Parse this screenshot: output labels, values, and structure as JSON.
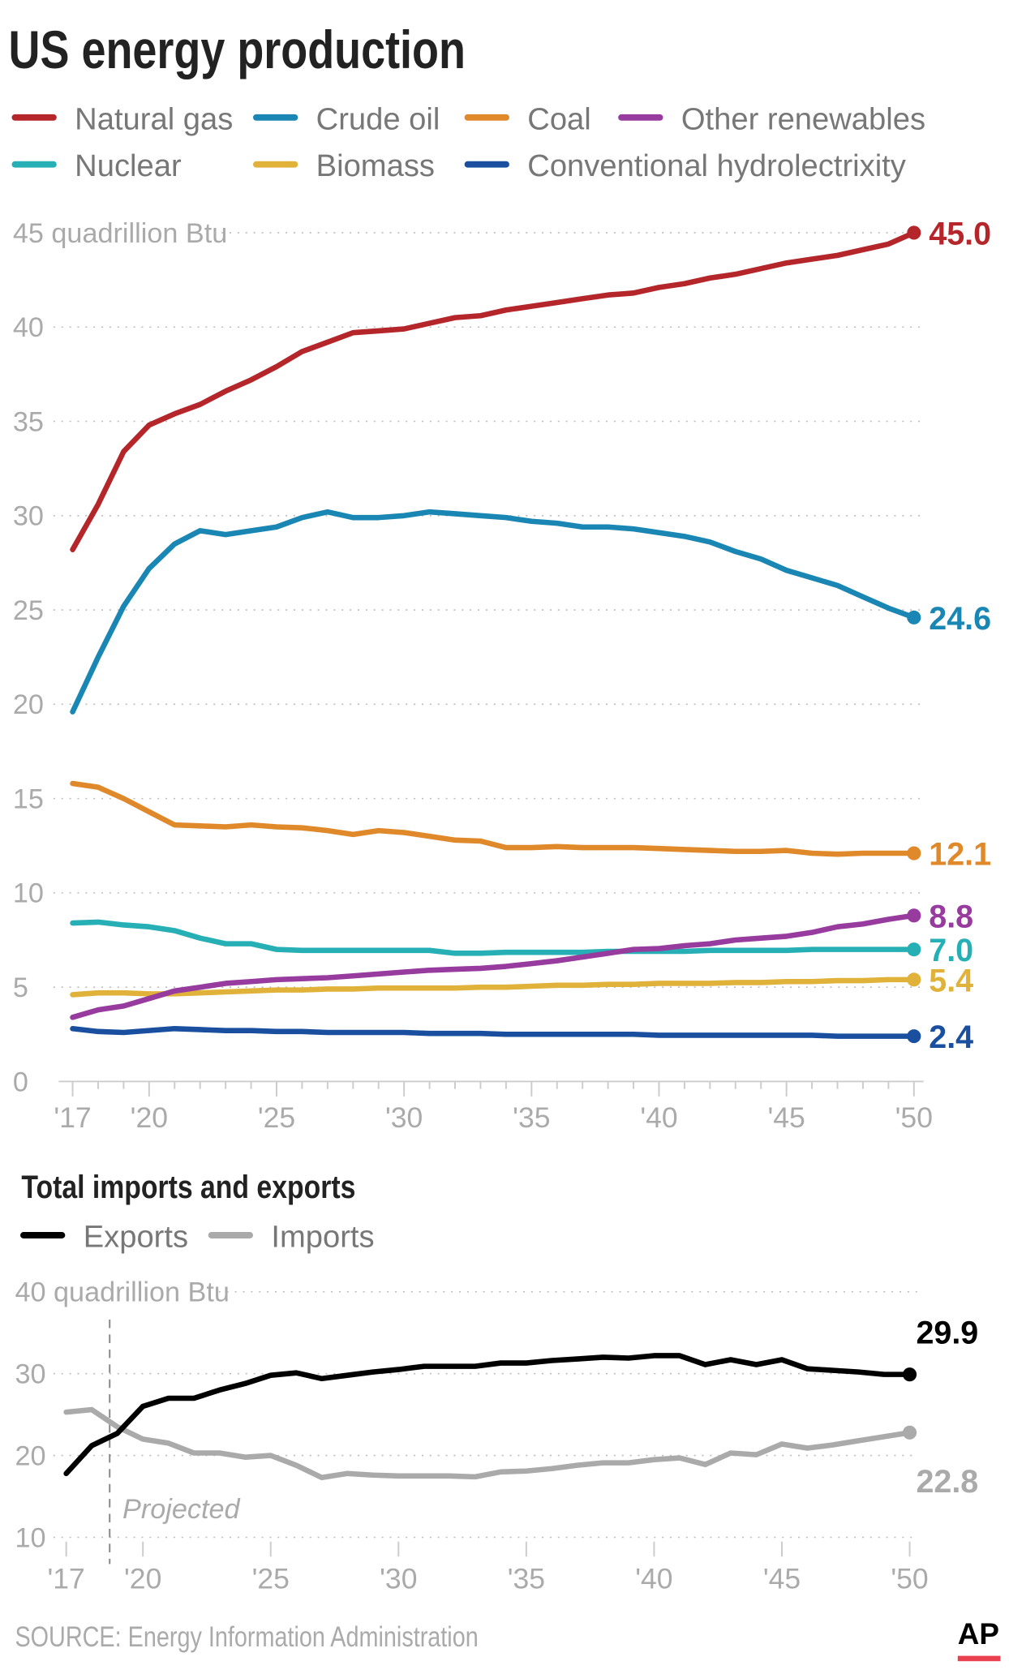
{
  "chart_data": [
    {
      "type": "line",
      "title": "US energy production",
      "ylabel": "quadrillion Btu",
      "unit_label": "45 quadrillion Btu",
      "x": [
        2017,
        2018,
        2019,
        2020,
        2021,
        2022,
        2023,
        2024,
        2025,
        2026,
        2027,
        2028,
        2029,
        2030,
        2031,
        2032,
        2033,
        2034,
        2035,
        2036,
        2037,
        2038,
        2039,
        2040,
        2041,
        2042,
        2043,
        2044,
        2045,
        2046,
        2047,
        2048,
        2049,
        2050
      ],
      "xlim": [
        2017,
        2050
      ],
      "ylim": [
        0,
        45
      ],
      "x_ticks": [
        {
          "value": 2017,
          "label": "'17"
        },
        {
          "value": 2020,
          "label": "'20"
        },
        {
          "value": 2025,
          "label": "'25"
        },
        {
          "value": 2030,
          "label": "'30"
        },
        {
          "value": 2035,
          "label": "'35"
        },
        {
          "value": 2040,
          "label": "'40"
        },
        {
          "value": 2045,
          "label": "'45"
        },
        {
          "value": 2050,
          "label": "'50"
        }
      ],
      "y_ticks": [
        {
          "value": 45,
          "label": "45 quadrillion Btu"
        },
        {
          "value": 40,
          "label": "40"
        },
        {
          "value": 35,
          "label": "35"
        },
        {
          "value": 30,
          "label": "30"
        },
        {
          "value": 25,
          "label": "25"
        },
        {
          "value": 20,
          "label": "20"
        },
        {
          "value": 15,
          "label": "15"
        },
        {
          "value": 10,
          "label": "10"
        },
        {
          "value": 5,
          "label": "5"
        },
        {
          "value": 0,
          "label": "0"
        }
      ],
      "grid": true,
      "legend_position": "top",
      "series": [
        {
          "name": "Natural gas",
          "color": "#b5262a",
          "end_label": "45.0",
          "values": [
            28.2,
            30.6,
            33.4,
            34.8,
            35.4,
            35.9,
            36.6,
            37.2,
            37.9,
            38.7,
            39.2,
            39.7,
            39.8,
            39.9,
            40.2,
            40.5,
            40.6,
            40.9,
            41.1,
            41.3,
            41.5,
            41.7,
            41.8,
            42.1,
            42.3,
            42.6,
            42.8,
            43.1,
            43.4,
            43.6,
            43.8,
            44.1,
            44.4,
            45.0
          ]
        },
        {
          "name": "Crude oil",
          "color": "#1a86b3",
          "end_label": "24.6",
          "values": [
            19.6,
            22.5,
            25.2,
            27.2,
            28.5,
            29.2,
            29.0,
            29.2,
            29.4,
            29.9,
            30.2,
            29.9,
            29.9,
            30.0,
            30.2,
            30.1,
            30.0,
            29.9,
            29.7,
            29.6,
            29.4,
            29.4,
            29.3,
            29.1,
            28.9,
            28.6,
            28.1,
            27.7,
            27.1,
            26.7,
            26.3,
            25.7,
            25.1,
            24.6
          ]
        },
        {
          "name": "Coal",
          "color": "#e0892b",
          "end_label": "12.1",
          "values": [
            15.8,
            15.6,
            15.0,
            14.3,
            13.6,
            13.55,
            13.5,
            13.6,
            13.5,
            13.45,
            13.3,
            13.1,
            13.3,
            13.2,
            13.0,
            12.8,
            12.75,
            12.4,
            12.4,
            12.45,
            12.4,
            12.4,
            12.4,
            12.35,
            12.3,
            12.25,
            12.2,
            12.2,
            12.25,
            12.1,
            12.05,
            12.1,
            12.1,
            12.1
          ]
        },
        {
          "name": "Other renewables",
          "color": "#973b9e",
          "end_label": "8.8",
          "values": [
            3.4,
            3.8,
            4.0,
            4.4,
            4.8,
            5.0,
            5.2,
            5.3,
            5.4,
            5.45,
            5.5,
            5.6,
            5.7,
            5.8,
            5.9,
            5.95,
            6.0,
            6.1,
            6.25,
            6.4,
            6.6,
            6.8,
            7.0,
            7.05,
            7.2,
            7.3,
            7.5,
            7.6,
            7.7,
            7.9,
            8.2,
            8.35,
            8.6,
            8.8
          ]
        },
        {
          "name": "Nuclear",
          "color": "#26afb4",
          "end_label": "7.0",
          "values": [
            8.4,
            8.45,
            8.3,
            8.2,
            8.0,
            7.6,
            7.3,
            7.3,
            7.0,
            6.95,
            6.95,
            6.95,
            6.95,
            6.95,
            6.95,
            6.8,
            6.8,
            6.85,
            6.85,
            6.85,
            6.85,
            6.9,
            6.9,
            6.9,
            6.9,
            6.95,
            6.95,
            6.95,
            6.95,
            7.0,
            7.0,
            7.0,
            7.0,
            7.0
          ]
        },
        {
          "name": "Biomass",
          "color": "#e0b23a",
          "end_label": "5.4",
          "values": [
            4.6,
            4.7,
            4.7,
            4.65,
            4.65,
            4.7,
            4.75,
            4.8,
            4.85,
            4.85,
            4.9,
            4.9,
            4.95,
            4.95,
            4.95,
            4.95,
            5.0,
            5.0,
            5.05,
            5.1,
            5.1,
            5.15,
            5.15,
            5.2,
            5.2,
            5.2,
            5.25,
            5.25,
            5.3,
            5.3,
            5.35,
            5.35,
            5.4,
            5.4
          ]
        },
        {
          "name": "Conventional hydrolectrixity",
          "color": "#1a4fa0",
          "end_label": "2.4",
          "values": [
            2.8,
            2.65,
            2.6,
            2.7,
            2.8,
            2.75,
            2.7,
            2.7,
            2.65,
            2.65,
            2.6,
            2.6,
            2.6,
            2.6,
            2.55,
            2.55,
            2.55,
            2.5,
            2.5,
            2.5,
            2.5,
            2.5,
            2.5,
            2.45,
            2.45,
            2.45,
            2.45,
            2.45,
            2.45,
            2.45,
            2.4,
            2.4,
            2.4,
            2.4
          ]
        }
      ]
    },
    {
      "type": "line",
      "title": "Total imports and exports",
      "ylabel": "quadrillion Btu",
      "x": [
        2017,
        2018,
        2019,
        2020,
        2021,
        2022,
        2023,
        2024,
        2025,
        2026,
        2027,
        2028,
        2029,
        2030,
        2031,
        2032,
        2033,
        2034,
        2035,
        2036,
        2037,
        2038,
        2039,
        2040,
        2041,
        2042,
        2043,
        2044,
        2045,
        2046,
        2047,
        2048,
        2049,
        2050
      ],
      "xlim": [
        2017,
        2050
      ],
      "ylim": [
        10,
        40
      ],
      "x_ticks": [
        {
          "value": 2017,
          "label": "'17"
        },
        {
          "value": 2020,
          "label": "'20"
        },
        {
          "value": 2025,
          "label": "'25"
        },
        {
          "value": 2030,
          "label": "'30"
        },
        {
          "value": 2035,
          "label": "'35"
        },
        {
          "value": 2040,
          "label": "'40"
        },
        {
          "value": 2045,
          "label": "'45"
        },
        {
          "value": 2050,
          "label": "'50"
        }
      ],
      "y_ticks": [
        {
          "value": 40,
          "label": "40 quadrillion Btu"
        },
        {
          "value": 30,
          "label": "30"
        },
        {
          "value": 20,
          "label": "20"
        },
        {
          "value": 10,
          "label": "10"
        }
      ],
      "grid": true,
      "legend_position": "top",
      "annotation": {
        "label": "Projected",
        "x": 2018.7
      },
      "series": [
        {
          "name": "Exports",
          "color": "#000000",
          "end_label": "29.9",
          "values": [
            17.8,
            21.2,
            22.7,
            26.0,
            27.0,
            27.0,
            28.0,
            28.8,
            29.8,
            30.1,
            29.4,
            29.8,
            30.2,
            30.5,
            30.9,
            30.9,
            30.9,
            31.3,
            31.3,
            31.6,
            31.8,
            32.0,
            31.9,
            32.2,
            32.2,
            31.1,
            31.7,
            31.1,
            31.7,
            30.6,
            30.4,
            30.2,
            29.9,
            29.9
          ]
        },
        {
          "name": "Imports",
          "color": "#aaaaaa",
          "end_label": "22.8",
          "values": [
            25.3,
            25.6,
            23.5,
            22.0,
            21.5,
            20.3,
            20.3,
            19.8,
            20.0,
            18.8,
            17.3,
            17.8,
            17.6,
            17.5,
            17.5,
            17.5,
            17.4,
            18.0,
            18.1,
            18.4,
            18.8,
            19.1,
            19.1,
            19.5,
            19.7,
            18.9,
            20.3,
            20.1,
            21.4,
            20.9,
            21.3,
            21.8,
            22.3,
            22.8
          ]
        }
      ]
    }
  ],
  "footer": {
    "source": "SOURCE: Energy Information Administration",
    "logo": "AP",
    "logo_color": "#e8404f"
  }
}
